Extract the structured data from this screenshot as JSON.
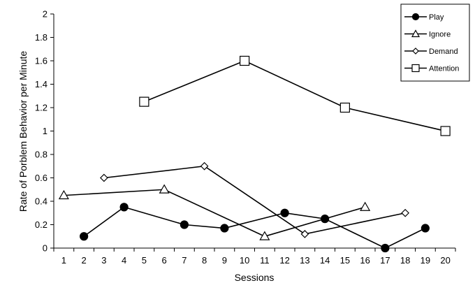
{
  "chart_data": {
    "type": "line",
    "title": "",
    "xlabel": "Sessions",
    "ylabel": "Rate of Porblem Behavior per Minute",
    "xlim": [
      0.5,
      20.5
    ],
    "ylim": [
      0,
      2
    ],
    "x_ticks": [
      "1",
      "2",
      "3",
      "4",
      "5",
      "6",
      "7",
      "8",
      "9",
      "10",
      "11",
      "12",
      "13",
      "14",
      "15",
      "16",
      "17",
      "18",
      "19",
      "20"
    ],
    "y_ticks": [
      "0",
      "0.2",
      "0.4",
      "0.6",
      "0.8",
      "1",
      "1.2",
      "1.4",
      "1.6",
      "1.8",
      "2"
    ],
    "grid": false,
    "legend_position": "top-right",
    "series": [
      {
        "name": "Play",
        "marker": "filled-circle",
        "x": [
          2,
          4,
          7,
          9,
          12,
          14,
          17,
          19
        ],
        "y": [
          0.1,
          0.35,
          0.2,
          0.17,
          0.3,
          0.25,
          0,
          0.17
        ]
      },
      {
        "name": "Ignore",
        "marker": "open-triangle",
        "x": [
          1,
          6,
          11,
          16
        ],
        "y": [
          0.45,
          0.5,
          0.1,
          0.35
        ]
      },
      {
        "name": "Demand",
        "marker": "open-diamond",
        "x": [
          3,
          8,
          13,
          18
        ],
        "y": [
          0.6,
          0.7,
          0.12,
          0.3
        ]
      },
      {
        "name": "Attention",
        "marker": "open-square",
        "x": [
          5,
          10,
          15,
          20
        ],
        "y": [
          1.25,
          1.6,
          1.2,
          1.0
        ]
      }
    ]
  }
}
